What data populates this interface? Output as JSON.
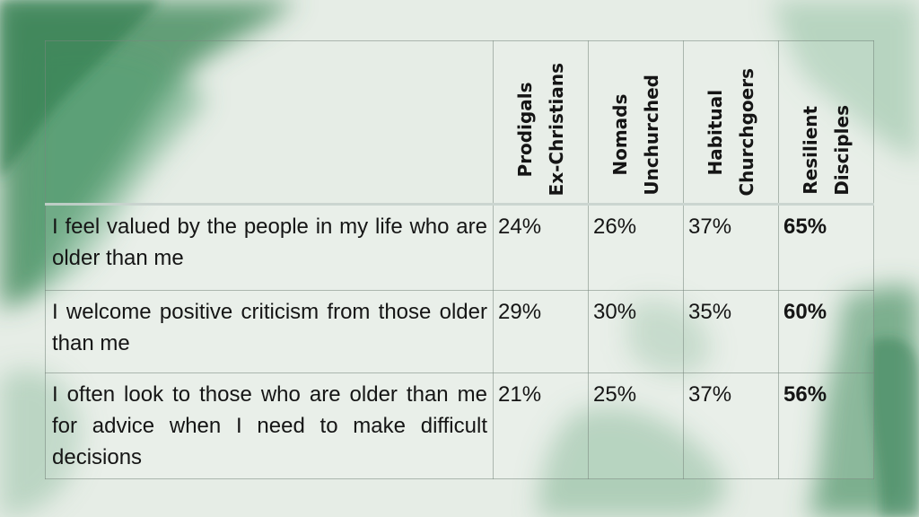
{
  "table": {
    "columns": [
      {
        "line1": "Prodigals",
        "line2": "Ex-Christians",
        "bold": false
      },
      {
        "line1": "Nomads",
        "line2": "Unchurched",
        "bold": false
      },
      {
        "line1": "Habitual",
        "line2": "Churchgoers",
        "bold": false
      },
      {
        "line1": "Resilient",
        "line2": "Disciples",
        "bold": true
      }
    ],
    "rows": [
      {
        "label": "I feel valued by the people in my life who are older than me",
        "values": [
          "24%",
          "26%",
          "37%",
          "65%"
        ]
      },
      {
        "label": "I welcome positive criticism from those older than me",
        "values": [
          "29%",
          "30%",
          "35%",
          "60%"
        ]
      },
      {
        "label": "I often look to those who are older than me for advice when I need to make difficult decisions",
        "values": [
          "21%",
          "25%",
          "37%",
          "56%"
        ]
      }
    ]
  },
  "colors": {
    "background": "#e6ede6",
    "watercolor_green": "#3f8a5c",
    "text": "#151515"
  }
}
